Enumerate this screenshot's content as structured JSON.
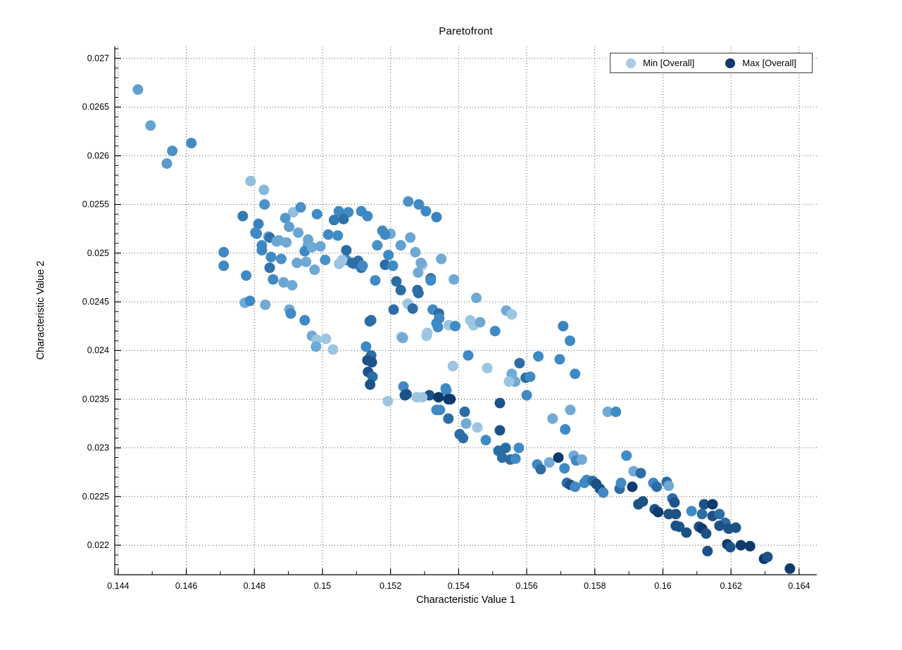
{
  "chart_data": {
    "type": "scatter",
    "title": "Paretofront",
    "xlabel": "Characteristic Value 1",
    "ylabel": "Characteristic Value 2",
    "xlim": [
      0.1439,
      0.16452
    ],
    "ylim": [
      0.021697,
      0.027123
    ],
    "xtick_labels": [
      "0.144",
      "0.146",
      "0.148",
      "0.15",
      "0.152",
      "0.154",
      "0.156",
      "0.158",
      "0.16",
      "0.162",
      "0.164"
    ],
    "ytick_labels": [
      "0.022",
      "0.0225",
      "0.023",
      "0.0235",
      "0.024",
      "0.0245",
      "0.025",
      "0.0255",
      "0.026",
      "0.0265",
      "0.027"
    ],
    "grid": "dotted-major",
    "grid_color": "#555555",
    "axis_color": "#000000",
    "background": "#ffffff",
    "marker_diameter_px": 15,
    "colormap": {
      "stops": [
        "#aed0e8",
        "#3f8ac4",
        "#0e3a6d"
      ],
      "meaning": "Overall characteristic value from Min (light) to Max (dark)"
    },
    "legend": {
      "position": "top-right",
      "entries": [
        {
          "label": "Min [Overall]",
          "color": "#a9cce4"
        },
        {
          "label": "Max [Overall]",
          "color": "#123a6d"
        }
      ]
    },
    "points_format": [
      "x",
      "y",
      "color_t"
    ],
    "points": [
      [
        0.14458,
        0.02668,
        0.35
      ],
      [
        0.14495,
        0.02631,
        0.32
      ],
      [
        0.14615,
        0.02613,
        0.5
      ],
      [
        0.14559,
        0.02605,
        0.45
      ],
      [
        0.14543,
        0.02592,
        0.38
      ],
      [
        0.14789,
        0.02574,
        0.12
      ],
      [
        0.14828,
        0.02565,
        0.18
      ],
      [
        0.1483,
        0.0255,
        0.45
      ],
      [
        0.15252,
        0.02553,
        0.45
      ],
      [
        0.15283,
        0.0255,
        0.5
      ],
      [
        0.15304,
        0.02543,
        0.5
      ],
      [
        0.15335,
        0.02537,
        0.55
      ],
      [
        0.14766,
        0.02538,
        0.6
      ],
      [
        0.14812,
        0.0253,
        0.55
      ],
      [
        0.14803,
        0.02521,
        0.5
      ],
      [
        0.14841,
        0.02517,
        0.28
      ],
      [
        0.14872,
        0.02513,
        0.3
      ],
      [
        0.14822,
        0.02508,
        0.5
      ],
      [
        0.14914,
        0.02542,
        0.12
      ],
      [
        0.14929,
        0.02521,
        0.3
      ],
      [
        0.14957,
        0.02508,
        0.3
      ],
      [
        0.15048,
        0.02543,
        0.5
      ],
      [
        0.15034,
        0.02534,
        0.6
      ],
      [
        0.15017,
        0.02519,
        0.5
      ],
      [
        0.15076,
        0.02542,
        0.5
      ],
      [
        0.15062,
        0.02535,
        0.65
      ],
      [
        0.15114,
        0.02543,
        0.5
      ],
      [
        0.15132,
        0.02538,
        0.5
      ],
      [
        0.15176,
        0.02523,
        0.5
      ],
      [
        0.152,
        0.0252,
        0.28
      ],
      [
        0.15258,
        0.02516,
        0.3
      ],
      [
        0.1471,
        0.02501,
        0.5
      ],
      [
        0.1471,
        0.02487,
        0.5
      ],
      [
        0.14776,
        0.02477,
        0.5
      ],
      [
        0.14822,
        0.02503,
        0.52
      ],
      [
        0.14807,
        0.0252,
        0.5
      ],
      [
        0.14845,
        0.02516,
        0.65
      ],
      [
        0.14865,
        0.02512,
        0.3
      ],
      [
        0.14894,
        0.02511,
        0.28
      ],
      [
        0.14849,
        0.02496,
        0.5
      ],
      [
        0.14845,
        0.02485,
        0.65
      ],
      [
        0.14855,
        0.02473,
        0.5
      ],
      [
        0.14886,
        0.0247,
        0.3
      ],
      [
        0.14911,
        0.02467,
        0.28
      ],
      [
        0.14958,
        0.02514,
        0.3
      ],
      [
        0.14948,
        0.02502,
        0.5
      ],
      [
        0.14969,
        0.02506,
        0.28
      ],
      [
        0.14994,
        0.02507,
        0.3
      ],
      [
        0.14952,
        0.02491,
        0.28
      ],
      [
        0.14925,
        0.0249,
        0.3
      ],
      [
        0.14977,
        0.02483,
        0.28
      ],
      [
        0.15045,
        0.02518,
        0.5
      ],
      [
        0.1507,
        0.02493,
        0.5
      ],
      [
        0.15049,
        0.02489,
        0.1
      ],
      [
        0.15093,
        0.02489,
        0.5
      ],
      [
        0.15114,
        0.02485,
        0.68
      ],
      [
        0.15184,
        0.02519,
        0.5
      ],
      [
        0.15194,
        0.02498,
        0.5
      ],
      [
        0.15184,
        0.02488,
        0.68
      ],
      [
        0.15273,
        0.02501,
        0.28
      ],
      [
        0.15293,
        0.02488,
        0.1
      ],
      [
        0.15318,
        0.02474,
        0.68
      ],
      [
        0.15279,
        0.02462,
        0.68
      ],
      [
        0.1507,
        0.02503,
        0.68
      ],
      [
        0.15058,
        0.02493,
        0.08
      ],
      [
        0.15087,
        0.0249,
        0.68
      ],
      [
        0.15105,
        0.02492,
        0.68
      ],
      [
        0.15118,
        0.02487,
        0.5
      ],
      [
        0.15207,
        0.02487,
        0.5
      ],
      [
        0.15289,
        0.0249,
        0.28
      ],
      [
        0.15349,
        0.02494,
        0.28
      ],
      [
        0.15386,
        0.02473,
        0.28
      ],
      [
        0.14891,
        0.02536,
        0.4
      ],
      [
        0.14936,
        0.02547,
        0.45
      ],
      [
        0.14984,
        0.0254,
        0.5
      ],
      [
        0.14902,
        0.02527,
        0.35
      ],
      [
        0.15008,
        0.02493,
        0.45
      ],
      [
        0.14879,
        0.02494,
        0.45
      ],
      [
        0.15161,
        0.02508,
        0.45
      ],
      [
        0.1523,
        0.02508,
        0.35
      ],
      [
        0.15155,
        0.02472,
        0.5
      ],
      [
        0.15217,
        0.02471,
        0.68
      ],
      [
        0.15281,
        0.0248,
        0.28
      ],
      [
        0.15318,
        0.02472,
        0.5
      ],
      [
        0.1523,
        0.02462,
        0.68
      ],
      [
        0.15282,
        0.02459,
        0.68
      ],
      [
        0.15452,
        0.02454,
        0.28
      ],
      [
        0.14772,
        0.02449,
        0.28
      ],
      [
        0.14787,
        0.02451,
        0.5
      ],
      [
        0.14832,
        0.02447,
        0.28
      ],
      [
        0.14903,
        0.02442,
        0.28
      ],
      [
        0.14907,
        0.02438,
        0.5
      ],
      [
        0.14948,
        0.02431,
        0.5
      ],
      [
        0.15324,
        0.02442,
        0.5
      ],
      [
        0.15335,
        0.02428,
        0.5
      ],
      [
        0.15339,
        0.02424,
        0.5
      ],
      [
        0.15209,
        0.02442,
        0.68
      ],
      [
        0.15251,
        0.02448,
        0.08
      ],
      [
        0.15265,
        0.02443,
        0.68
      ],
      [
        0.15139,
        0.0243,
        0.68
      ],
      [
        0.15342,
        0.02438,
        0.68
      ],
      [
        0.15343,
        0.02433,
        0.5
      ],
      [
        0.14969,
        0.02415,
        0.28
      ],
      [
        0.14983,
        0.02411,
        0.08
      ],
      [
        0.1501,
        0.02412,
        0.08
      ],
      [
        0.14981,
        0.02404,
        0.28
      ],
      [
        0.15031,
        0.02401,
        0.08
      ],
      [
        0.15371,
        0.02426,
        0.08
      ],
      [
        0.1539,
        0.02425,
        0.5
      ],
      [
        0.15232,
        0.02414,
        0.08
      ],
      [
        0.15306,
        0.02415,
        0.08
      ],
      [
        0.15308,
        0.02418,
        0.08
      ],
      [
        0.15236,
        0.02413,
        0.28
      ],
      [
        0.15434,
        0.02431,
        0.08
      ],
      [
        0.15444,
        0.02426,
        0.08
      ],
      [
        0.15463,
        0.02429,
        0.28
      ],
      [
        0.15507,
        0.0242,
        0.5
      ],
      [
        0.15707,
        0.02425,
        0.55
      ],
      [
        0.15143,
        0.02431,
        0.68
      ],
      [
        0.1554,
        0.02441,
        0.28
      ],
      [
        0.15556,
        0.02437,
        0.08
      ],
      [
        0.15727,
        0.0241,
        0.5
      ],
      [
        0.15128,
        0.02404,
        0.5
      ],
      [
        0.15143,
        0.02395,
        0.68
      ],
      [
        0.15132,
        0.0239,
        0.85
      ],
      [
        0.15134,
        0.02378,
        0.85
      ],
      [
        0.15147,
        0.02373,
        0.68
      ],
      [
        0.1514,
        0.02365,
        0.85
      ],
      [
        0.15145,
        0.02388,
        0.85
      ],
      [
        0.15428,
        0.02395,
        0.5
      ],
      [
        0.15383,
        0.02384,
        0.08
      ],
      [
        0.15484,
        0.02382,
        0.08
      ],
      [
        0.15556,
        0.02376,
        0.28
      ],
      [
        0.15566,
        0.02368,
        0.28
      ],
      [
        0.15579,
        0.02387,
        0.68
      ],
      [
        0.15597,
        0.02372,
        0.68
      ],
      [
        0.1561,
        0.02373,
        0.5
      ],
      [
        0.15634,
        0.02394,
        0.5
      ],
      [
        0.15697,
        0.02391,
        0.5
      ],
      [
        0.15742,
        0.02376,
        0.5
      ],
      [
        0.15238,
        0.02363,
        0.5
      ],
      [
        0.15242,
        0.02354,
        0.85
      ],
      [
        0.15277,
        0.02352,
        0.08
      ],
      [
        0.15314,
        0.02354,
        0.85
      ],
      [
        0.15341,
        0.02352,
        1
      ],
      [
        0.15376,
        0.0235,
        1
      ],
      [
        0.15364,
        0.02359,
        0.5
      ],
      [
        0.15521,
        0.02346,
        0.85
      ],
      [
        0.15192,
        0.02348,
        0.08
      ],
      [
        0.15247,
        0.02355,
        0.85
      ],
      [
        0.15293,
        0.02352,
        0.08
      ],
      [
        0.15362,
        0.02361,
        0.5
      ],
      [
        0.1537,
        0.0235,
        1
      ],
      [
        0.15345,
        0.02339,
        0.5
      ],
      [
        0.15335,
        0.02339,
        0.5
      ],
      [
        0.1537,
        0.0233,
        0.68
      ],
      [
        0.15548,
        0.02368,
        0.08
      ],
      [
        0.156,
        0.02354,
        0.5
      ],
      [
        0.15418,
        0.02337,
        0.68
      ],
      [
        0.15422,
        0.02325,
        0.28
      ],
      [
        0.15455,
        0.02321,
        0.08
      ],
      [
        0.15403,
        0.02314,
        0.68
      ],
      [
        0.15413,
        0.0231,
        0.68
      ],
      [
        0.1548,
        0.02308,
        0.5
      ],
      [
        0.15521,
        0.02318,
        0.85
      ],
      [
        0.15676,
        0.0233,
        0.28
      ],
      [
        0.15713,
        0.02319,
        0.5
      ],
      [
        0.15728,
        0.02339,
        0.28
      ],
      [
        0.15838,
        0.02337,
        0.28
      ],
      [
        0.15862,
        0.02337,
        0.5
      ],
      [
        0.15893,
        0.02292,
        0.5
      ],
      [
        0.15538,
        0.023,
        0.68
      ],
      [
        0.15517,
        0.02297,
        0.68
      ],
      [
        0.15528,
        0.0229,
        0.68
      ],
      [
        0.15552,
        0.02288,
        0.68
      ],
      [
        0.15567,
        0.02289,
        0.5
      ],
      [
        0.15577,
        0.023,
        0.5
      ],
      [
        0.15631,
        0.02283,
        0.5
      ],
      [
        0.15641,
        0.02278,
        0.68
      ],
      [
        0.15666,
        0.02285,
        0.28
      ],
      [
        0.15693,
        0.0229,
        1
      ],
      [
        0.15711,
        0.02279,
        0.5
      ],
      [
        0.15738,
        0.02292,
        0.28
      ],
      [
        0.15745,
        0.02287,
        0.5
      ],
      [
        0.15762,
        0.02288,
        0.28
      ],
      [
        0.15718,
        0.02264,
        0.68
      ],
      [
        0.15728,
        0.02262,
        0.85
      ],
      [
        0.15742,
        0.0226,
        0.5
      ],
      [
        0.15769,
        0.02264,
        0.5
      ],
      [
        0.15776,
        0.02267,
        0.5
      ],
      [
        0.15794,
        0.02266,
        0.68
      ],
      [
        0.15804,
        0.02263,
        0.85
      ],
      [
        0.15815,
        0.02258,
        0.85
      ],
      [
        0.15825,
        0.02254,
        0.5
      ],
      [
        0.15873,
        0.02258,
        0.68
      ],
      [
        0.15877,
        0.02264,
        0.5
      ],
      [
        0.15914,
        0.02276,
        0.28
      ],
      [
        0.15935,
        0.02274,
        0.68
      ],
      [
        0.1591,
        0.0226,
        1
      ],
      [
        0.15972,
        0.02264,
        0.5
      ],
      [
        0.15982,
        0.0226,
        0.68
      ],
      [
        0.16011,
        0.02265,
        0.68
      ],
      [
        0.16017,
        0.02261,
        0.28
      ],
      [
        0.15928,
        0.02242,
        0.85
      ],
      [
        0.15941,
        0.02245,
        0.85
      ],
      [
        0.15976,
        0.02237,
        0.85
      ],
      [
        0.15986,
        0.02234,
        1
      ],
      [
        0.16028,
        0.02248,
        0.68
      ],
      [
        0.16034,
        0.02244,
        0.85
      ],
      [
        0.16038,
        0.02232,
        0.85
      ],
      [
        0.16017,
        0.02232,
        0.85
      ],
      [
        0.16084,
        0.02235,
        0.5
      ],
      [
        0.16121,
        0.02242,
        0.85
      ],
      [
        0.16146,
        0.02242,
        1
      ],
      [
        0.16115,
        0.02232,
        0.68
      ],
      [
        0.16146,
        0.0223,
        0.85
      ],
      [
        0.16166,
        0.02232,
        0.68
      ],
      [
        0.16183,
        0.02223,
        0.68
      ],
      [
        0.16038,
        0.0222,
        0.85
      ],
      [
        0.16048,
        0.02219,
        0.85
      ],
      [
        0.16069,
        0.02213,
        0.85
      ],
      [
        0.16106,
        0.02219,
        0.85
      ],
      [
        0.16115,
        0.02217,
        1
      ],
      [
        0.16127,
        0.02212,
        0.85
      ],
      [
        0.16166,
        0.0222,
        0.85
      ],
      [
        0.16193,
        0.02217,
        0.85
      ],
      [
        0.16214,
        0.02218,
        0.85
      ],
      [
        0.16131,
        0.02194,
        0.85
      ],
      [
        0.16189,
        0.02201,
        1
      ],
      [
        0.16198,
        0.02198,
        0.85
      ],
      [
        0.16229,
        0.022,
        1
      ],
      [
        0.16256,
        0.02199,
        1
      ],
      [
        0.16297,
        0.02186,
        1
      ],
      [
        0.16307,
        0.02188,
        0.85
      ],
      [
        0.16373,
        0.02176,
        1
      ]
    ]
  }
}
